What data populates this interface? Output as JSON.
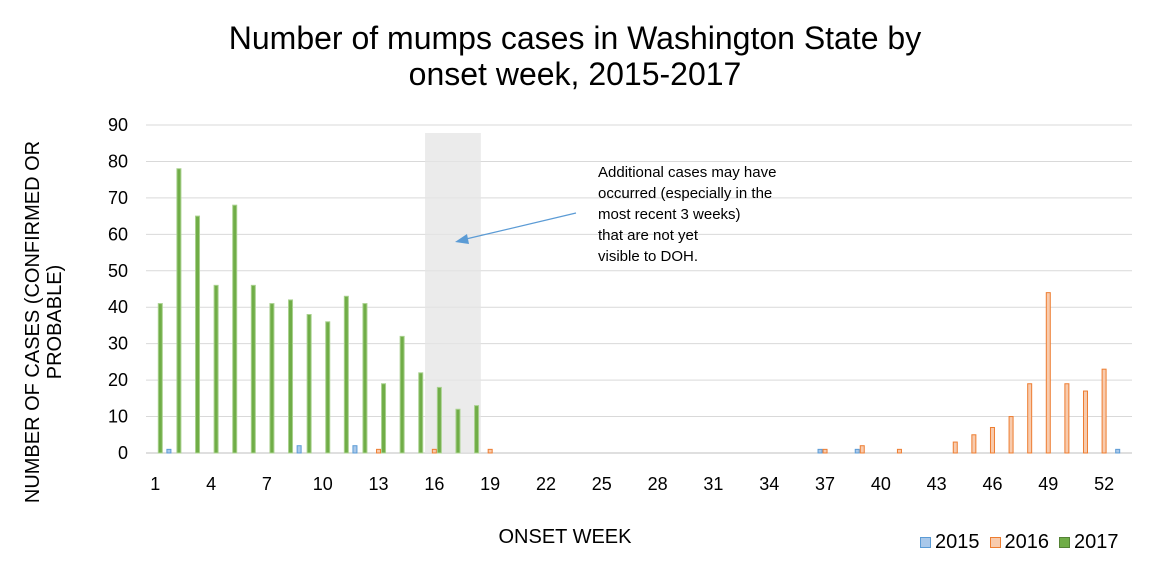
{
  "chart_data": {
    "type": "bar",
    "title": "Number of mumps cases in Washington State by onset week, 2015-2017",
    "title_line1": "Number of mumps cases in Washington State by",
    "title_line2": "onset week, 2015-2017",
    "xlabel": "ONSET WEEK",
    "ylabel": "NUMBER OF CASES (CONFIRMED OR PROBABLE)",
    "ylabel_line1": "NUMBER OF CASES (CONFIRMED OR",
    "ylabel_line2": "PROBABLE)",
    "ylim": [
      0,
      90
    ],
    "yticks": [
      0,
      10,
      20,
      30,
      40,
      50,
      60,
      70,
      80,
      90
    ],
    "x": [
      1,
      2,
      3,
      4,
      5,
      6,
      7,
      8,
      9,
      10,
      11,
      12,
      13,
      14,
      15,
      16,
      17,
      18,
      19,
      20,
      21,
      22,
      23,
      24,
      25,
      26,
      27,
      28,
      29,
      30,
      31,
      32,
      33,
      34,
      35,
      36,
      37,
      38,
      39,
      40,
      41,
      42,
      43,
      44,
      45,
      46,
      47,
      48,
      49,
      50,
      51,
      52,
      53
    ],
    "xtick_labels": [
      "1",
      "4",
      "7",
      "10",
      "13",
      "16",
      "19",
      "22",
      "25",
      "28",
      "31",
      "34",
      "37",
      "40",
      "43",
      "46",
      "49",
      "52"
    ],
    "grid": true,
    "legend_position": "bottom-right",
    "shaded_weeks": [
      16,
      18
    ],
    "series": [
      {
        "name": "2015",
        "color": "#5b9bd5",
        "values": [
          0,
          1,
          0,
          0,
          0,
          0,
          0,
          0,
          2,
          0,
          0,
          2,
          0,
          0,
          0,
          0,
          0,
          0,
          0,
          0,
          0,
          0,
          0,
          0,
          0,
          0,
          0,
          0,
          0,
          0,
          0,
          0,
          0,
          0,
          0,
          0,
          1,
          0,
          1,
          0,
          0,
          0,
          0,
          0,
          0,
          0,
          0,
          0,
          0,
          0,
          0,
          0,
          1
        ]
      },
      {
        "name": "2016",
        "color": "#ed7d31",
        "values": [
          0,
          0,
          0,
          0,
          0,
          0,
          0,
          0,
          0,
          0,
          0,
          0,
          1,
          0,
          0,
          1,
          0,
          0,
          1,
          0,
          0,
          0,
          0,
          0,
          0,
          0,
          0,
          0,
          0,
          0,
          0,
          0,
          0,
          0,
          0,
          0,
          1,
          0,
          2,
          0,
          1,
          0,
          0,
          3,
          5,
          7,
          10,
          19,
          44,
          19,
          17,
          23,
          0
        ]
      },
      {
        "name": "2017",
        "color": "#70ad47",
        "values": [
          41,
          78,
          65,
          46,
          68,
          46,
          41,
          42,
          38,
          36,
          43,
          41,
          19,
          32,
          22,
          18,
          12,
          13,
          0,
          0,
          0,
          0,
          0,
          0,
          0,
          0,
          0,
          0,
          0,
          0,
          0,
          0,
          0,
          0,
          0,
          0,
          0,
          0,
          0,
          0,
          0,
          0,
          0,
          0,
          0,
          0,
          0,
          0,
          0,
          0,
          0,
          0,
          0
        ]
      }
    ],
    "annotation": [
      "Additional cases may have",
      "occurred (especially in the",
      "most recent 3 weeks)",
      "that are not yet",
      "visible to DOH."
    ]
  }
}
